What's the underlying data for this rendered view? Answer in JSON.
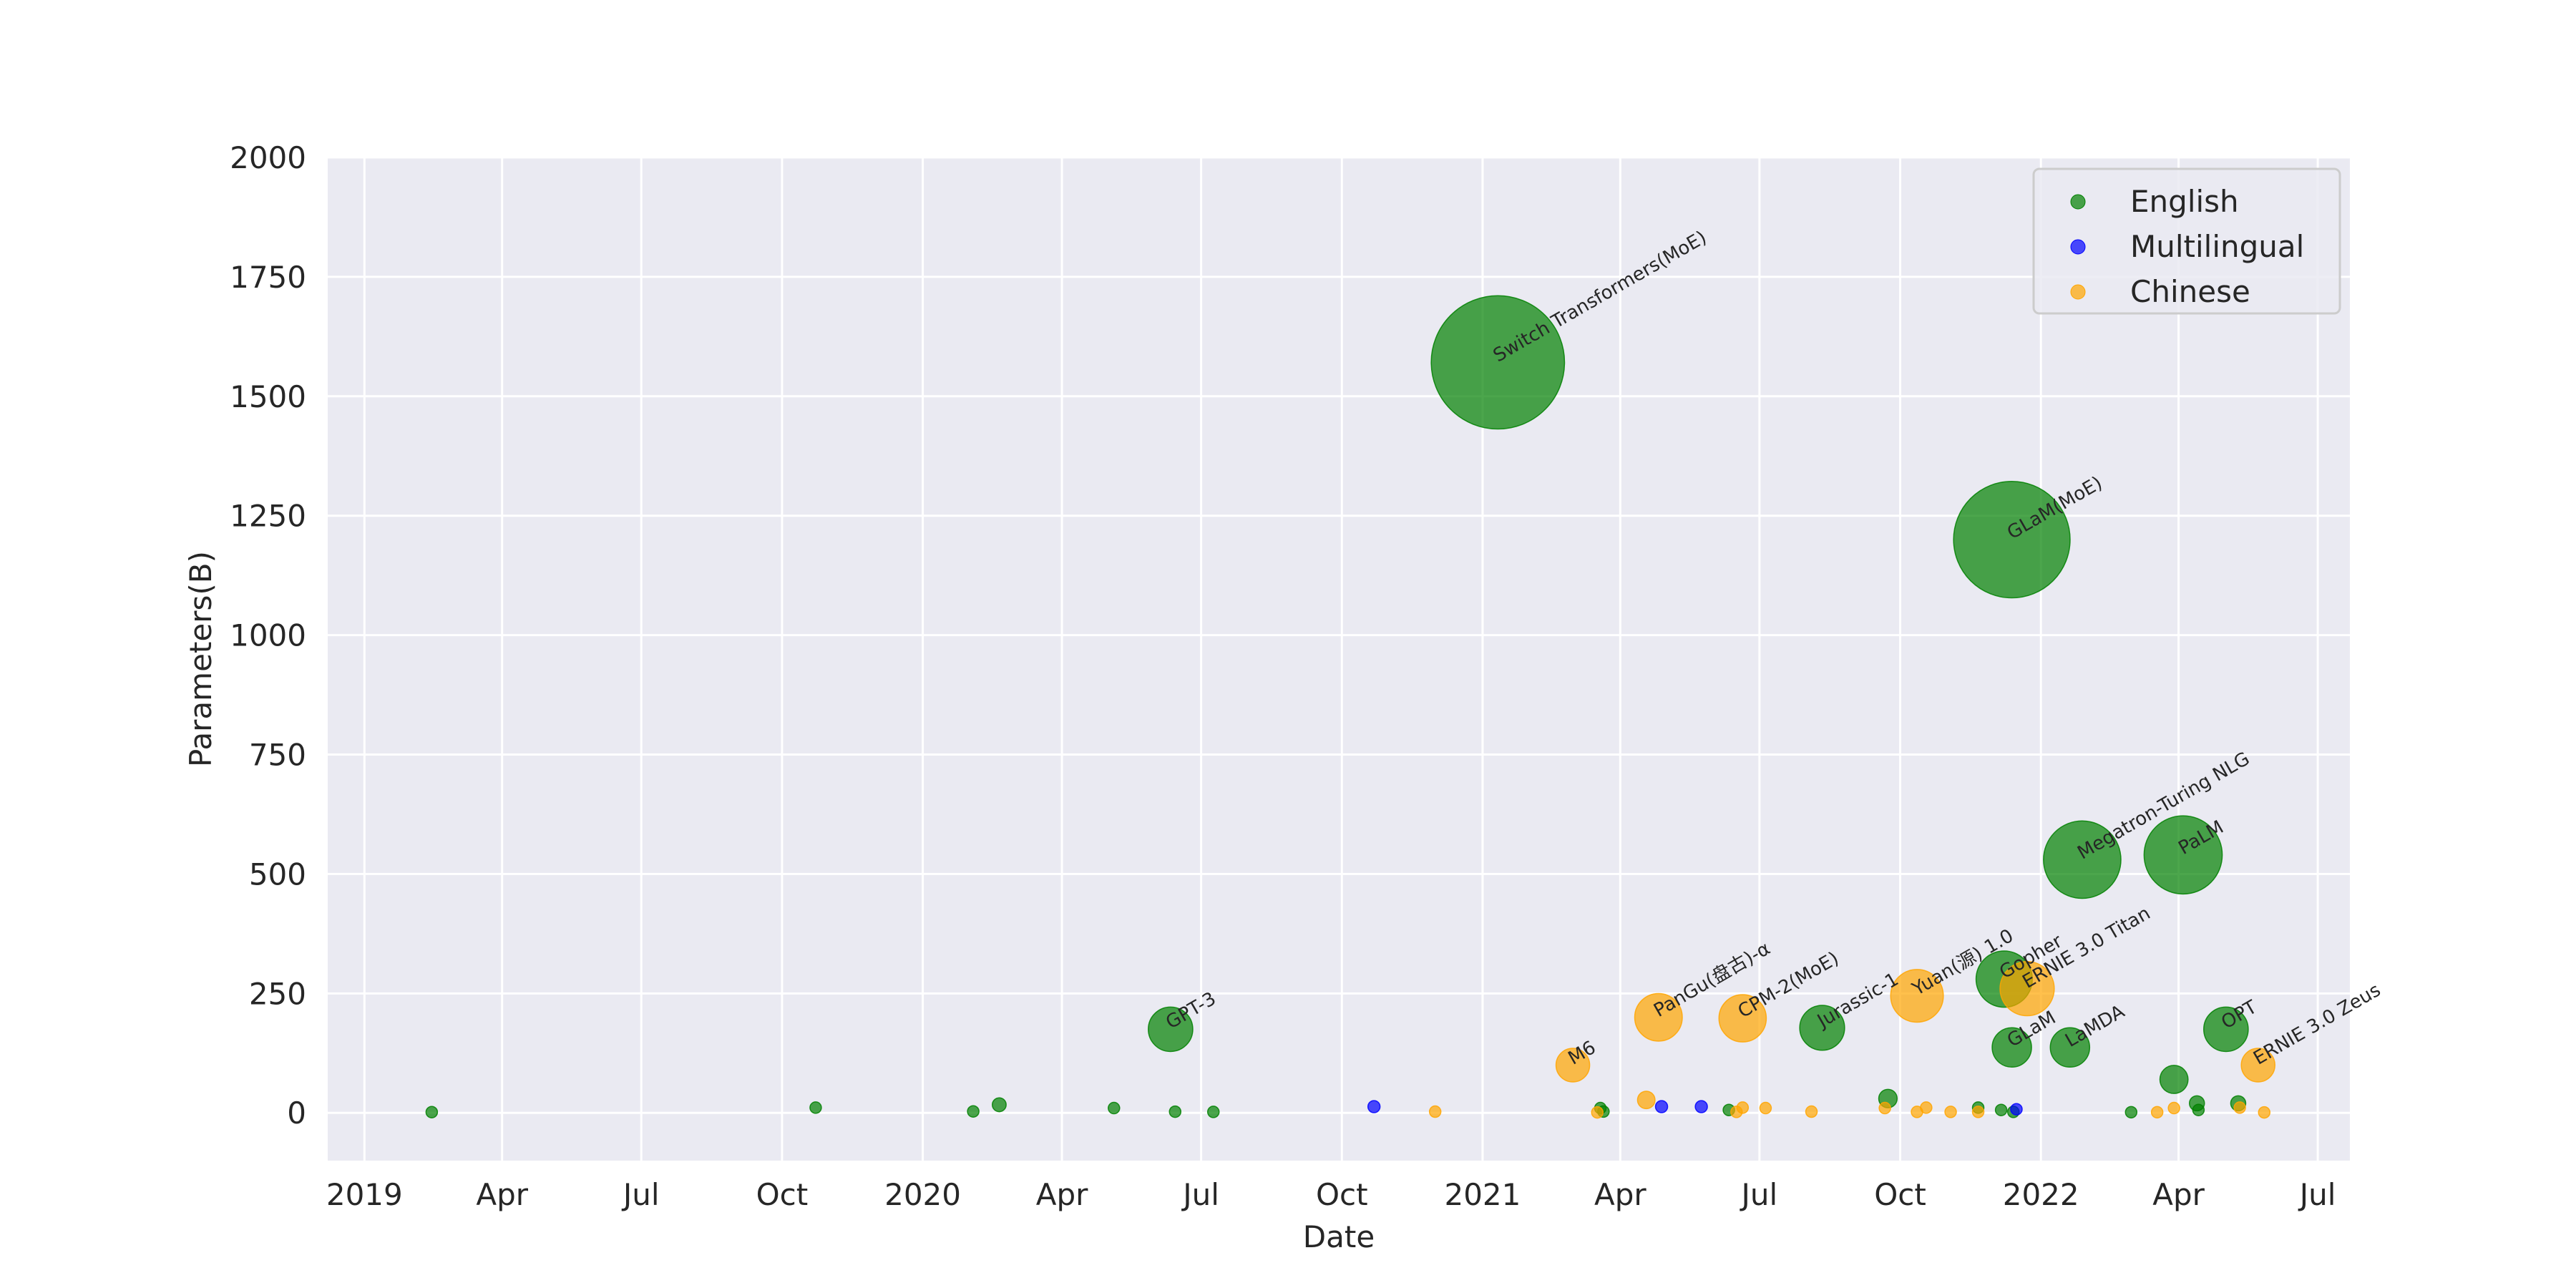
{
  "chart_data": {
    "type": "scatter",
    "xlabel": "Date",
    "ylabel": "Parameters(B)",
    "xlim": [
      "2018-12-08",
      "2022-07-22"
    ],
    "ylim": [
      -100,
      2000
    ],
    "yticks": [
      0,
      250,
      500,
      750,
      1000,
      1250,
      1500,
      1750,
      2000
    ],
    "xticks": [
      {
        "date": "2019-01-01",
        "label": "2019"
      },
      {
        "date": "2019-04-01",
        "label": "Apr"
      },
      {
        "date": "2019-07-01",
        "label": "Jul"
      },
      {
        "date": "2019-10-01",
        "label": "Oct"
      },
      {
        "date": "2020-01-01",
        "label": "2020"
      },
      {
        "date": "2020-04-01",
        "label": "Apr"
      },
      {
        "date": "2020-07-01",
        "label": "Jul"
      },
      {
        "date": "2020-10-01",
        "label": "Oct"
      },
      {
        "date": "2021-01-01",
        "label": "2021"
      },
      {
        "date": "2021-04-01",
        "label": "Apr"
      },
      {
        "date": "2021-07-01",
        "label": "Jul"
      },
      {
        "date": "2021-10-01",
        "label": "Oct"
      },
      {
        "date": "2022-01-01",
        "label": "2022"
      },
      {
        "date": "2022-04-01",
        "label": "Apr"
      },
      {
        "date": "2022-07-01",
        "label": "Jul"
      }
    ],
    "grid": true,
    "legend_position": "top-right",
    "marker_size_encodes": "parameters",
    "series": [
      {
        "name": "English",
        "color": "#008000",
        "points": [
          {
            "date": "2019-02-14",
            "y": 1.5
          },
          {
            "date": "2019-10-23",
            "y": 11
          },
          {
            "date": "2020-02-03",
            "y": 3
          },
          {
            "date": "2020-02-20",
            "y": 17
          },
          {
            "date": "2020-05-05",
            "y": 10
          },
          {
            "date": "2020-06-11",
            "y": 175,
            "label": "GPT-3"
          },
          {
            "date": "2020-06-14",
            "y": 2.5
          },
          {
            "date": "2020-07-09",
            "y": 2
          },
          {
            "date": "2021-01-11",
            "y": 1571,
            "label": "Switch Transformers(MoE)"
          },
          {
            "date": "2021-03-19",
            "y": 10
          },
          {
            "date": "2021-03-21",
            "y": 2.7
          },
          {
            "date": "2021-06-11",
            "y": 6
          },
          {
            "date": "2021-08-11",
            "y": 178,
            "label": "Jurassic-1"
          },
          {
            "date": "2021-09-23",
            "y": 30
          },
          {
            "date": "2021-11-21",
            "y": 11
          },
          {
            "date": "2021-12-06",
            "y": 6
          },
          {
            "date": "2021-12-08",
            "y": 280,
            "label": "Gopher"
          },
          {
            "date": "2021-12-13",
            "y": 1200,
            "label": "GLaM(MoE)"
          },
          {
            "date": "2021-12-13",
            "y": 137,
            "label": "GLaM"
          },
          {
            "date": "2021-12-14",
            "y": 2
          },
          {
            "date": "2022-01-20",
            "y": 137,
            "label": "LaMDA"
          },
          {
            "date": "2022-01-28",
            "y": 530,
            "label": "Megatron-Turing NLG"
          },
          {
            "date": "2022-03-01",
            "y": 1.3
          },
          {
            "date": "2022-03-29",
            "y": 70
          },
          {
            "date": "2022-04-04",
            "y": 540,
            "label": "PaLM"
          },
          {
            "date": "2022-04-13",
            "y": 20
          },
          {
            "date": "2022-04-14",
            "y": 6
          },
          {
            "date": "2022-05-02",
            "y": 175,
            "label": "OPT"
          },
          {
            "date": "2022-05-10",
            "y": 20
          }
        ]
      },
      {
        "name": "Multilingual",
        "color": "#0000ff",
        "points": [
          {
            "date": "2020-10-22",
            "y": 13
          },
          {
            "date": "2021-04-28",
            "y": 13
          },
          {
            "date": "2021-05-24",
            "y": 13
          },
          {
            "date": "2021-12-16",
            "y": 7.5
          }
        ]
      },
      {
        "name": "Chinese",
        "color": "#ffa500",
        "points": [
          {
            "date": "2020-12-01",
            "y": 2.6
          },
          {
            "date": "2021-03-01",
            "y": 100,
            "label": "M6"
          },
          {
            "date": "2021-03-17",
            "y": 1
          },
          {
            "date": "2021-04-18",
            "y": 27
          },
          {
            "date": "2021-04-26",
            "y": 200,
            "label": "PanGu(盘古)-α"
          },
          {
            "date": "2021-06-16",
            "y": 2
          },
          {
            "date": "2021-06-20",
            "y": 11
          },
          {
            "date": "2021-06-20",
            "y": 198,
            "label": "CPM-2(MoE)"
          },
          {
            "date": "2021-07-05",
            "y": 10
          },
          {
            "date": "2021-08-04",
            "y": 2.6
          },
          {
            "date": "2021-09-21",
            "y": 10
          },
          {
            "date": "2021-10-12",
            "y": 245,
            "label": "Yuan(源) 1.0"
          },
          {
            "date": "2021-10-12",
            "y": 2
          },
          {
            "date": "2021-10-18",
            "y": 11
          },
          {
            "date": "2021-11-03",
            "y": 2
          },
          {
            "date": "2021-11-21",
            "y": 2
          },
          {
            "date": "2021-12-23",
            "y": 260,
            "label": "ERNIE 3.0 Titan"
          },
          {
            "date": "2022-03-18",
            "y": 1.3
          },
          {
            "date": "2022-03-29",
            "y": 10
          },
          {
            "date": "2022-05-11",
            "y": 11
          },
          {
            "date": "2022-05-23",
            "y": 100,
            "label": "ERNIE 3.0 Zeus"
          },
          {
            "date": "2022-05-27",
            "y": 1
          }
        ]
      }
    ]
  }
}
